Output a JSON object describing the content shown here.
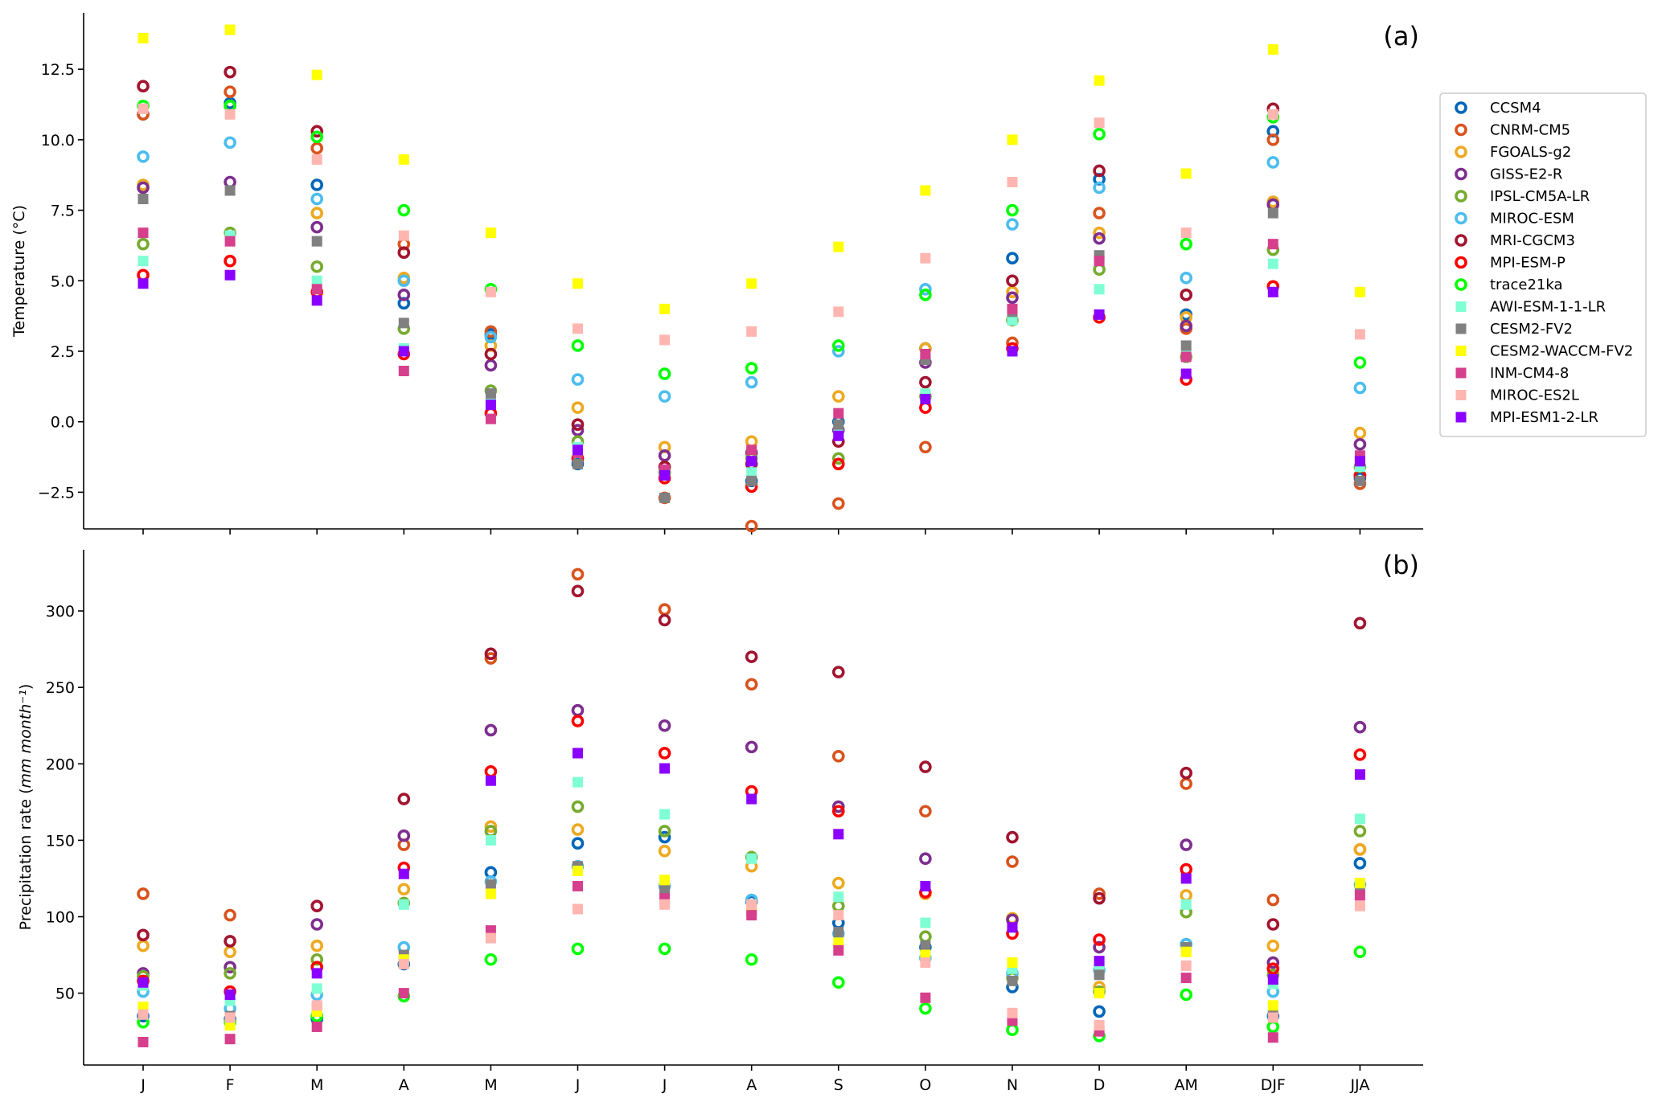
{
  "chart_data": [
    {
      "type": "scatter",
      "panel_label": "(a)",
      "ylabel_prefix": "Temperature (",
      "ylabel_unit": "°C",
      "ylabel_suffix": ")",
      "ylim": [
        -3.8,
        14.5
      ],
      "yticks": [
        -2.5,
        0.0,
        2.5,
        5.0,
        7.5,
        10.0,
        12.5
      ],
      "ytick_labels": [
        "−2.5",
        "0.0",
        "2.5",
        "5.0",
        "7.5",
        "10.0",
        "12.5"
      ],
      "categories": [
        "J",
        "F",
        "M",
        "A",
        "M",
        "J",
        "J",
        "A",
        "S",
        "O",
        "N",
        "D",
        "AM",
        "DJF",
        "JJA"
      ],
      "series": [
        {
          "name": "CCSM4",
          "values": [
            10.9,
            11.3,
            8.4,
            4.2,
            3.1,
            -1.5,
            -1.8,
            -2.1,
            0.0,
            2.6,
            5.8,
            8.6,
            3.8,
            10.3,
            -2.0
          ]
        },
        {
          "name": "CNRM-CM5",
          "values": [
            10.9,
            11.7,
            9.7,
            6.3,
            3.2,
            -1.3,
            -2.7,
            -3.7,
            -2.9,
            -0.9,
            2.8,
            7.4,
            3.3,
            10.0,
            -2.2
          ]
        },
        {
          "name": "FGOALS-g2",
          "values": [
            8.4,
            11.2,
            7.4,
            5.1,
            2.7,
            0.5,
            -0.9,
            -0.7,
            0.9,
            2.6,
            4.6,
            6.7,
            3.7,
            7.8,
            -0.4
          ]
        },
        {
          "name": "GISS-E2-R",
          "values": [
            8.3,
            8.5,
            6.9,
            4.5,
            2.0,
            -0.3,
            -1.2,
            -1.1,
            -0.3,
            2.1,
            4.4,
            6.5,
            3.4,
            7.7,
            -0.8
          ]
        },
        {
          "name": "IPSL-CM5A-LR",
          "values": [
            6.3,
            6.7,
            5.5,
            3.3,
            1.1,
            -0.7,
            -1.8,
            -1.3,
            -1.3,
            0.9,
            3.6,
            5.4,
            2.3,
            6.1,
            -1.6
          ]
        },
        {
          "name": "MIROC-ESM",
          "values": [
            9.4,
            9.9,
            7.9,
            5.0,
            3.0,
            1.5,
            0.9,
            1.4,
            2.5,
            4.7,
            7.0,
            8.3,
            5.1,
            9.2,
            1.2
          ]
        },
        {
          "name": "MRI-CGCM3",
          "values": [
            11.9,
            12.4,
            10.3,
            6.0,
            2.4,
            -0.1,
            -1.6,
            -1.5,
            -0.7,
            1.4,
            5.0,
            8.9,
            4.5,
            11.1,
            -1.9
          ]
        },
        {
          "name": "MPI-ESM-P",
          "values": [
            5.2,
            5.7,
            4.6,
            2.4,
            0.3,
            -1.3,
            -2.0,
            -2.3,
            -1.5,
            0.5,
            2.6,
            3.7,
            1.5,
            4.8,
            -1.9
          ]
        },
        {
          "name": "trace21ka",
          "values": [
            11.2,
            11.2,
            10.1,
            7.5,
            4.7,
            2.7,
            1.7,
            1.9,
            2.7,
            4.5,
            7.5,
            10.2,
            6.3,
            10.8,
            2.1
          ]
        },
        {
          "name": "AWI-ESM-1-1-LR",
          "values": [
            5.7,
            6.6,
            5.0,
            2.6,
            0.8,
            -0.9,
            -1.8,
            -1.8,
            -0.4,
            1.0,
            3.6,
            4.7,
            2.4,
            5.6,
            -1.6
          ]
        },
        {
          "name": "CESM2-FV2",
          "values": [
            7.9,
            8.2,
            6.4,
            3.5,
            1.0,
            -1.5,
            -2.7,
            -2.1,
            -0.1,
            2.2,
            3.9,
            5.9,
            2.7,
            7.4,
            -2.1
          ]
        },
        {
          "name": "CESM2-WACCM-FV2",
          "values": [
            13.6,
            13.9,
            12.3,
            9.3,
            6.7,
            4.9,
            4.0,
            4.9,
            6.2,
            8.2,
            10.0,
            12.1,
            8.8,
            13.2,
            4.6
          ]
        },
        {
          "name": "INM-CM4-8",
          "values": [
            6.7,
            6.4,
            4.7,
            1.8,
            0.1,
            -1.1,
            -1.7,
            -1.0,
            0.3,
            2.4,
            4.0,
            5.7,
            2.3,
            6.3,
            -1.2
          ]
        },
        {
          "name": "MIROC-ES2L",
          "values": [
            11.1,
            10.9,
            9.3,
            6.6,
            4.6,
            3.3,
            2.9,
            3.2,
            3.9,
            5.8,
            8.5,
            10.6,
            6.7,
            10.9,
            3.1
          ]
        },
        {
          "name": "MPI-ESM1-2-LR",
          "values": [
            4.9,
            5.2,
            4.3,
            2.5,
            0.6,
            -1.0,
            -1.9,
            -1.4,
            -0.5,
            0.8,
            2.5,
            3.8,
            1.7,
            4.6,
            -1.4
          ]
        }
      ]
    },
    {
      "type": "scatter",
      "panel_label": "(b)",
      "ylabel_prefix": "Precipitation rate (",
      "ylabel_unit": "mm month⁻¹",
      "ylabel_suffix": ")",
      "ylim": [
        3,
        340
      ],
      "yticks": [
        50,
        100,
        150,
        200,
        250,
        300
      ],
      "ytick_labels": [
        "50",
        "100",
        "150",
        "200",
        "250",
        "300"
      ],
      "categories": [
        "J",
        "F",
        "M",
        "A",
        "M",
        "J",
        "J",
        "A",
        "S",
        "O",
        "N",
        "D",
        "AM",
        "DJF",
        "JJA"
      ],
      "series": [
        {
          "name": "CCSM4",
          "values": [
            35,
            33,
            33,
            69,
            129,
            148,
            152,
            110,
            96,
            80,
            54,
            38,
            82,
            35,
            135
          ]
        },
        {
          "name": "CNRM-CM5",
          "values": [
            115,
            101,
            67,
            147,
            269,
            324,
            301,
            252,
            205,
            169,
            136,
            115,
            187,
            111,
            144
          ]
        },
        {
          "name": "FGOALS-g2",
          "values": [
            81,
            77,
            81,
            118,
            159,
            157,
            143,
            133,
            122,
            115,
            99,
            54,
            114,
            81,
            144
          ]
        },
        {
          "name": "GISS-E2-R",
          "values": [
            63,
            67,
            95,
            153,
            222,
            235,
            225,
            211,
            172,
            138,
            98,
            80,
            147,
            70,
            224
          ]
        },
        {
          "name": "IPSL-CM5A-LR",
          "values": [
            61,
            63,
            72,
            109,
            156,
            172,
            156,
            139,
            107,
            87,
            60,
            51,
            103,
            62,
            156
          ]
        },
        {
          "name": "MIROC-ESM",
          "values": [
            51,
            40,
            49,
            80,
            123,
            133,
            120,
            111,
            89,
            73,
            63,
            65,
            82,
            51,
            121
          ]
        },
        {
          "name": "MRI-CGCM3",
          "values": [
            88,
            84,
            107,
            177,
            272,
            313,
            294,
            270,
            260,
            198,
            152,
            112,
            194,
            95,
            292
          ]
        },
        {
          "name": "MPI-ESM-P",
          "values": [
            58,
            51,
            67,
            132,
            195,
            228,
            207,
            182,
            169,
            116,
            89,
            85,
            131,
            66,
            206
          ]
        },
        {
          "name": "trace21ka",
          "values": [
            31,
            31,
            35,
            48,
            72,
            79,
            79,
            72,
            57,
            40,
            26,
            22,
            49,
            28,
            77
          ]
        },
        {
          "name": "AWI-ESM-1-1-LR",
          "values": [
            55,
            45,
            53,
            108,
            150,
            188,
            167,
            138,
            113,
            96,
            66,
            65,
            108,
            56,
            164
          ]
        },
        {
          "name": "CESM2-FV2",
          "values": [
            38,
            35,
            40,
            75,
            121,
            133,
            118,
            104,
            90,
            81,
            58,
            62,
            80,
            36,
            118
          ]
        },
        {
          "name": "CESM2-WACCM-FV2",
          "values": [
            41,
            29,
            38,
            72,
            115,
            130,
            124,
            106,
            83,
            75,
            70,
            50,
            77,
            42,
            122
          ]
        },
        {
          "name": "INM-CM4-8",
          "values": [
            18,
            20,
            28,
            50,
            91,
            120,
            112,
            101,
            78,
            47,
            32,
            25,
            60,
            21,
            114
          ]
        },
        {
          "name": "MIROC-ES2L",
          "values": [
            36,
            34,
            42,
            69,
            86,
            105,
            108,
            108,
            101,
            70,
            37,
            29,
            68,
            34,
            107
          ]
        },
        {
          "name": "MPI-ESM1-2-LR",
          "values": [
            57,
            49,
            63,
            128,
            189,
            207,
            197,
            177,
            154,
            120,
            93,
            71,
            125,
            59,
            193
          ]
        }
      ]
    }
  ],
  "legend": {
    "placement": "right",
    "entries": [
      {
        "name": "CCSM4",
        "color": "#0066b8",
        "marker": "ring"
      },
      {
        "name": "CNRM-CM5",
        "color": "#d9531e",
        "marker": "ring"
      },
      {
        "name": "FGOALS-g2",
        "color": "#eda920",
        "marker": "ring"
      },
      {
        "name": "GISS-E2-R",
        "color": "#7d2e8e",
        "marker": "ring"
      },
      {
        "name": "IPSL-CM5A-LR",
        "color": "#76ab2f",
        "marker": "ring"
      },
      {
        "name": "MIROC-ESM",
        "color": "#4cbdee",
        "marker": "ring"
      },
      {
        "name": "MRI-CGCM3",
        "color": "#a2142f",
        "marker": "ring"
      },
      {
        "name": "MPI-ESM-P",
        "color": "#ff0000",
        "marker": "ring"
      },
      {
        "name": "trace21ka",
        "color": "#00ff00",
        "marker": "ring"
      },
      {
        "name": "AWI-ESM-1-1-LR",
        "color": "#7fffd4",
        "marker": "square"
      },
      {
        "name": "CESM2-FV2",
        "color": "#808080",
        "marker": "square"
      },
      {
        "name": "CESM2-WACCM-FV2",
        "color": "#ffff00",
        "marker": "square"
      },
      {
        "name": "INM-CM4-8",
        "color": "#d63f8c",
        "marker": "square"
      },
      {
        "name": "MIROC-ES2L",
        "color": "#ffb6b0",
        "marker": "square"
      },
      {
        "name": "MPI-ESM1-2-LR",
        "color": "#8b00ff",
        "marker": "square"
      }
    ]
  }
}
